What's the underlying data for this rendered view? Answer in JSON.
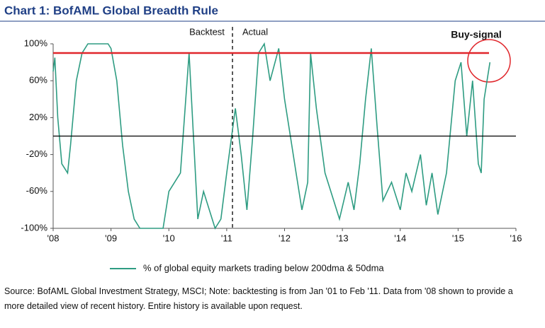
{
  "chart_data": {
    "type": "line",
    "title": "Chart 1: BofAML Global Breadth Rule",
    "annotations": [
      "Backtest",
      "Actual",
      "Buy-signal"
    ],
    "source": "Source: BofAML Global Investment Strategy, MSCI; Note: backtesting is from Jan '01 to Feb '11. Data from '08 shown to provide a more detailed view of recent history. Entire history is available upon request.",
    "x": [
      2008.0,
      2008.03,
      2008.08,
      2008.15,
      2008.25,
      2008.3,
      2008.4,
      2008.5,
      2008.6,
      2008.95,
      2009.0,
      2009.1,
      2009.2,
      2009.3,
      2009.4,
      2009.5,
      2009.9,
      2010.0,
      2010.2,
      2010.35,
      2010.5,
      2010.6,
      2010.8,
      2010.9,
      2011.0,
      2011.15,
      2011.25,
      2011.35,
      2011.45,
      2011.55,
      2011.65,
      2011.75,
      2011.9,
      2012.0,
      2012.1,
      2012.2,
      2012.3,
      2012.4,
      2012.45,
      2012.55,
      2012.7,
      2012.85,
      2012.95,
      2013.1,
      2013.2,
      2013.3,
      2013.4,
      2013.5,
      2013.6,
      2013.7,
      2013.85,
      2014.0,
      2014.1,
      2014.2,
      2014.35,
      2014.45,
      2014.55,
      2014.65,
      2014.8,
      2014.95,
      2015.05,
      2015.15,
      2015.25,
      2015.35,
      2015.4,
      2015.45,
      2015.55
    ],
    "series": [
      {
        "name": "% of global equity markets trading below 200dma & 50dma",
        "color": "#2e9c82",
        "values": [
          70,
          85,
          20,
          -30,
          -40,
          -10,
          60,
          90,
          100,
          100,
          95,
          60,
          -10,
          -60,
          -90,
          -100,
          -100,
          -60,
          -40,
          90,
          -90,
          -60,
          -100,
          -90,
          -40,
          30,
          -20,
          -80,
          0,
          90,
          100,
          60,
          95,
          40,
          0,
          -40,
          -80,
          -50,
          90,
          30,
          -40,
          -70,
          -90,
          -50,
          -80,
          -30,
          40,
          95,
          10,
          -70,
          -50,
          -80,
          -40,
          -60,
          -20,
          -75,
          -40,
          -85,
          -40,
          60,
          80,
          0,
          60,
          -30,
          -40,
          40,
          80
        ]
      }
    ],
    "xlim": [
      2008,
      2016
    ],
    "xticks": [
      {
        "value": 2008,
        "label": "'08"
      },
      {
        "value": 2009,
        "label": "'09"
      },
      {
        "value": 2010,
        "label": "'10"
      },
      {
        "value": 2011,
        "label": "'11"
      },
      {
        "value": 2012,
        "label": "'12"
      },
      {
        "value": 2013,
        "label": "'13"
      },
      {
        "value": 2014,
        "label": "'14"
      },
      {
        "value": 2015,
        "label": "'15"
      },
      {
        "value": 2016,
        "label": "'16"
      }
    ],
    "ylim": [
      -100,
      100
    ],
    "yticks": [
      {
        "value": 100,
        "label": "100%"
      },
      {
        "value": 60,
        "label": "60%"
      },
      {
        "value": 20,
        "label": "20%"
      },
      {
        "value": -20,
        "label": "-20%"
      },
      {
        "value": -60,
        "label": "-60%"
      },
      {
        "value": -100,
        "label": "-100%"
      }
    ],
    "hlines": [
      {
        "value": 90,
        "color": "#e0262b"
      },
      {
        "value": 0,
        "color": "#000000"
      }
    ],
    "vline": 2011.1
  }
}
